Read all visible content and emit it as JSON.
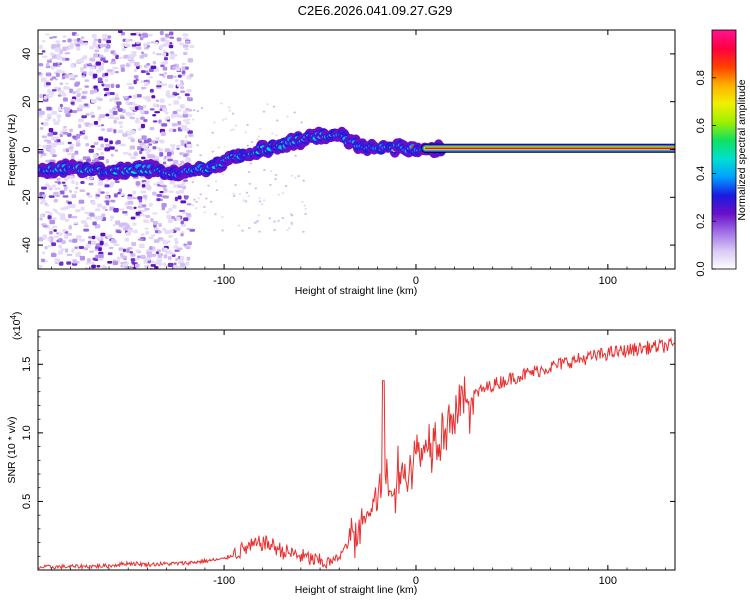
{
  "title": "C2E6.2026.041.09.27.G29",
  "chart_data": [
    {
      "type": "heatmap",
      "title": "C2E6.2026.041.09.27.G29",
      "xlabel": "Height of straight line (km)",
      "ylabel": "Frequency (Hz)",
      "xlim": [
        -197,
        135
      ],
      "ylim": [
        -50,
        50
      ],
      "xticks": [
        -100,
        0,
        100
      ],
      "xtick_labels": [
        "-100",
        "0",
        "100"
      ],
      "yticks": [
        -40,
        -20,
        0,
        20,
        40
      ],
      "ytick_labels": [
        "-40",
        "-20",
        "0",
        "20",
        "40"
      ],
      "ridge": {
        "x": [
          -195,
          -180,
          -160,
          -140,
          -125,
          -110,
          -100,
          -90,
          -80,
          -70,
          -60,
          -50,
          -40,
          -35,
          -30,
          -25,
          -20,
          -10,
          0,
          10,
          20,
          135
        ],
        "y": [
          -8,
          -8,
          -9,
          -8,
          -10,
          -8,
          -5,
          -2,
          0,
          2,
          4,
          6,
          6,
          4,
          2,
          1,
          0,
          1,
          0,
          0,
          0.5,
          0.5
        ]
      },
      "colorbar": {
        "label": "Normalized spectral amplitude",
        "range": [
          0.0,
          1.0
        ],
        "ticks": [
          0.0,
          0.2,
          0.4,
          0.6,
          0.8
        ],
        "tick_labels": [
          "0.0",
          "0.2",
          "0.4",
          "0.6",
          "0.8"
        ],
        "colors": [
          "#ffffff",
          "#d8c8f4",
          "#a070e8",
          "#6a10c8",
          "#1a1ae0",
          "#00a0ff",
          "#00e0d0",
          "#10e060",
          "#a0f000",
          "#f0f000",
          "#ffb000",
          "#ff4000",
          "#ff0040",
          "#ff1493"
        ]
      }
    },
    {
      "type": "line",
      "xlabel": "Height of straight line (km)",
      "ylabel": "SNR (10 * v/v)",
      "multiplier_base": "(x10",
      "multiplier_exp": "4",
      "multiplier_close": ")",
      "xlim": [
        -197,
        135
      ],
      "ylim": [
        0,
        1.75
      ],
      "xticks": [
        -100,
        0,
        100
      ],
      "xtick_labels": [
        "-100",
        "0",
        "100"
      ],
      "yticks": [
        0.5,
        1.0,
        1.5
      ],
      "ytick_labels": [
        "0.5",
        "1.0",
        "1.5"
      ],
      "color": "#e83030",
      "series": [
        {
          "name": "SNR",
          "x": [
            -197,
            -160,
            -150,
            -140,
            -120,
            -100,
            -90,
            -80,
            -75,
            -70,
            -60,
            -50,
            -45,
            -40,
            -35,
            -30,
            -25,
            -20,
            -17,
            -15,
            -12,
            -10,
            -5,
            0,
            5,
            10,
            15,
            20,
            25,
            30,
            40,
            50,
            60,
            70,
            80,
            90,
            100,
            110,
            120,
            135
          ],
          "y": [
            0.02,
            0.03,
            0.05,
            0.04,
            0.05,
            0.08,
            0.15,
            0.2,
            0.18,
            0.14,
            0.1,
            0.06,
            0.05,
            0.1,
            0.2,
            0.3,
            0.4,
            0.55,
            0.7,
            0.6,
            0.55,
            0.65,
            0.7,
            0.85,
            0.9,
            1.0,
            1.05,
            1.15,
            1.2,
            1.28,
            1.35,
            1.4,
            1.44,
            1.48,
            1.52,
            1.55,
            1.58,
            1.6,
            1.62,
            1.64
          ]
        }
      ]
    }
  ]
}
